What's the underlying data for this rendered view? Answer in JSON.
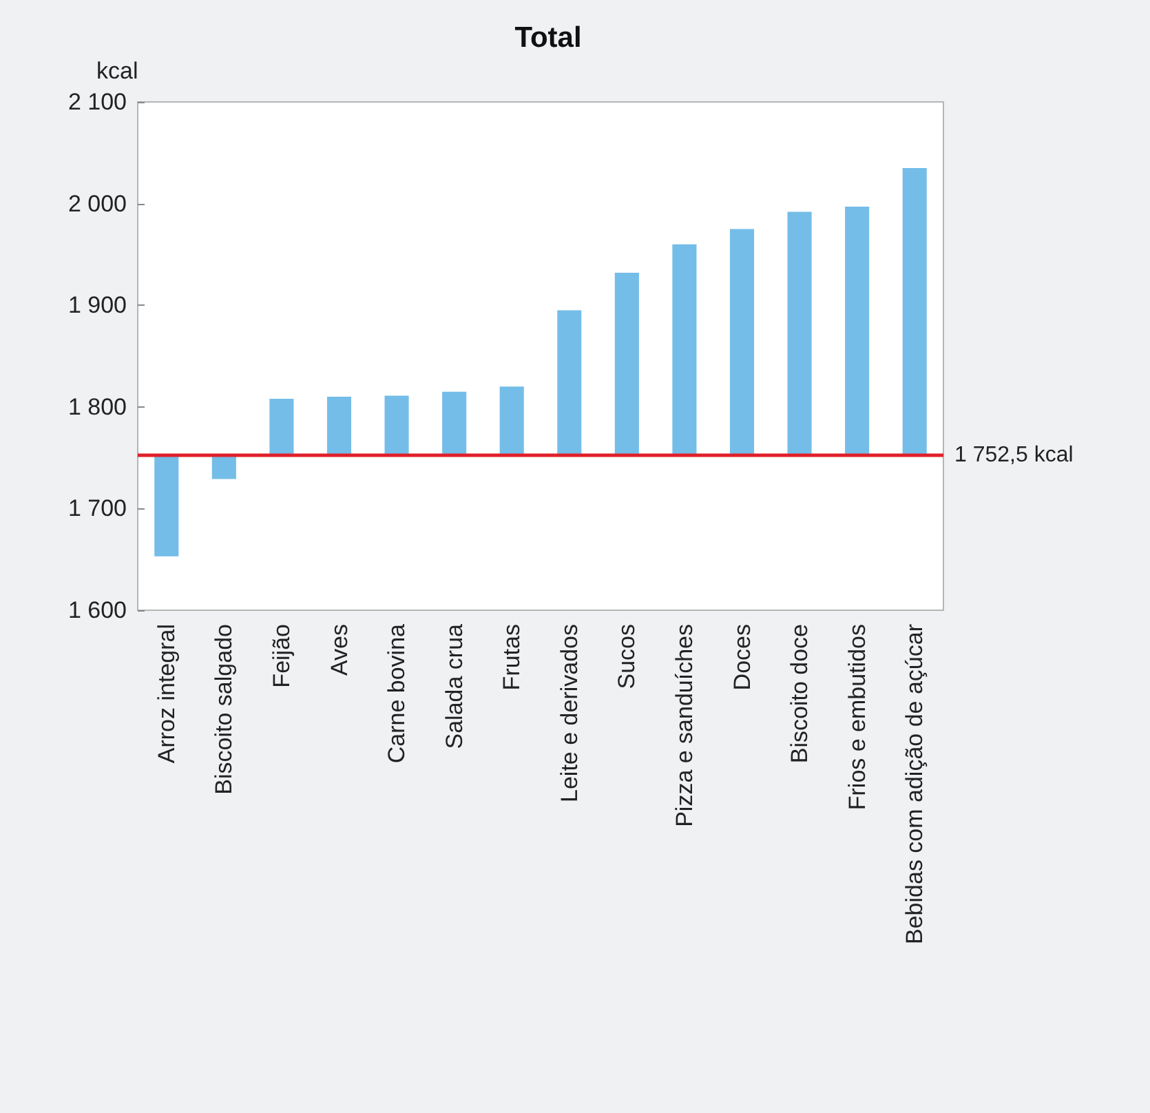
{
  "chart_data": {
    "type": "bar",
    "title": "Total",
    "ylabel": "kcal",
    "categories": [
      "Arroz integral",
      "Biscoito salgado",
      "Feijão",
      "Aves",
      "Carne bovina",
      "Salada crua",
      "Frutas",
      "Leite e derivados",
      "Sucos",
      "Pizza e sanduíches",
      "Doces",
      "Biscoito doce",
      "Frios e embutidos",
      "Bebidas com adição de açúcar"
    ],
    "base": [
      1752.5,
      1752.5,
      1752.5,
      1752.5,
      1752.5,
      1752.5,
      1752.5,
      1752.5,
      1752.5,
      1752.5,
      1752.5,
      1752.5,
      1752.5,
      1752.5
    ],
    "values": [
      -99.5,
      -23.5,
      55.5,
      57.5,
      58.5,
      62.5,
      67.5,
      142.5,
      179.5,
      207.5,
      222.5,
      239.5,
      244.5,
      282.5
    ],
    "color": "#74bde8",
    "ylim": [
      1600,
      2100
    ],
    "yticks": [
      {
        "value": 1600,
        "label": "1 600"
      },
      {
        "value": 1700,
        "label": "1 700"
      },
      {
        "value": 1800,
        "label": "1 800"
      },
      {
        "value": 1900,
        "label": "1 900"
      },
      {
        "value": 2000,
        "label": "2 000"
      },
      {
        "value": 2100,
        "label": "2 100"
      }
    ],
    "ref_lines": [
      {
        "axis": "y",
        "value": 1752.5,
        "label": "1 752,5 kcal",
        "color": "#e0202a"
      }
    ],
    "grid": false,
    "legend": false
  }
}
